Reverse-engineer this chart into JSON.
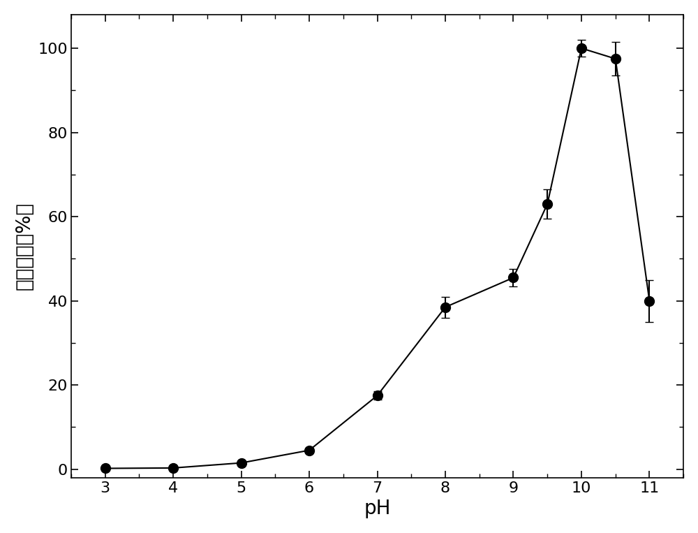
{
  "x": [
    3,
    4,
    5,
    6,
    7,
    8,
    9,
    9.5,
    10,
    10.5,
    11
  ],
  "y": [
    0.2,
    0.3,
    1.5,
    4.5,
    17.5,
    38.5,
    45.5,
    63.0,
    100.0,
    97.5,
    40.0
  ],
  "yerr": [
    0.2,
    0.2,
    0.5,
    0.5,
    1.0,
    2.5,
    2.0,
    3.5,
    2.0,
    4.0,
    5.0
  ],
  "xlabel": "pH",
  "ylabel": "相对活性（%）",
  "xlim": [
    2.5,
    11.5
  ],
  "ylim": [
    -2,
    108
  ],
  "xticks": [
    3,
    4,
    5,
    6,
    7,
    8,
    9,
    10,
    11
  ],
  "yticks": [
    0,
    20,
    40,
    60,
    80,
    100
  ],
  "line_color": "#000000",
  "marker_color": "#000000",
  "marker_size": 10,
  "line_width": 1.5,
  "capsize": 4,
  "elinewidth": 1.5,
  "xlabel_fontsize": 20,
  "ylabel_fontsize": 20,
  "tick_fontsize": 16,
  "background_color": "#ffffff"
}
